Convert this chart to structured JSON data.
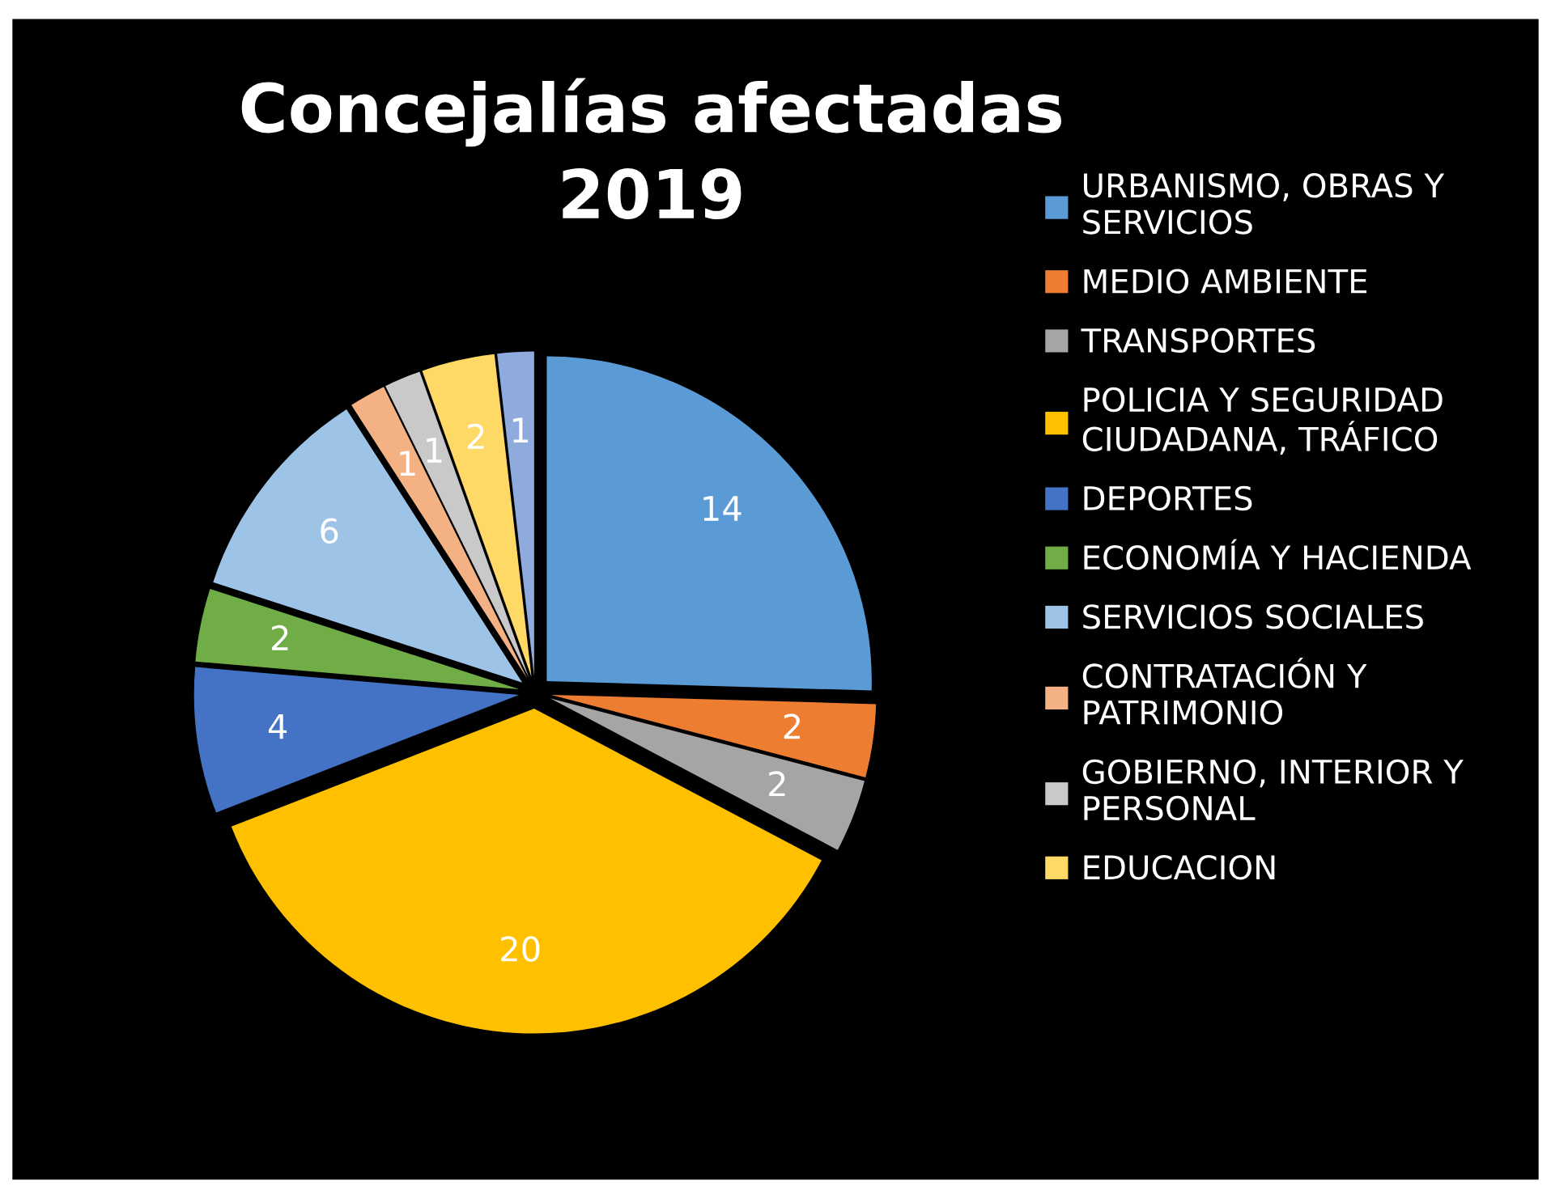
{
  "chart_data": {
    "type": "pie",
    "title": "Concejalías afectadas\n2019",
    "categories": [
      "URBANISMO, OBRAS Y\nSERVICIOS",
      "MEDIO AMBIENTE",
      "TRANSPORTES",
      "POLICIA Y SEGURIDAD\nCIUDADANA, TRÁFICO",
      "DEPORTES",
      "ECONOMÍA Y HACIENDA",
      "SERVICIOS SOCIALES",
      "CONTRATACIÓN Y\nPATRIMONIO",
      "GOBIERNO, INTERIOR Y\nPERSONAL",
      "EDUCACION",
      null
    ],
    "values": [
      14,
      2,
      2,
      20,
      4,
      2,
      6,
      1,
      1,
      2,
      1
    ],
    "colors": [
      "#5b9bd5",
      "#ed7d31",
      "#a5a5a5",
      "#ffc000",
      "#4472c4",
      "#70ad47",
      "#9dc3e6",
      "#f4b183",
      "#c9c9c9",
      "#ffd966",
      "#8faadc"
    ],
    "data_labels": true,
    "legend": "right"
  }
}
